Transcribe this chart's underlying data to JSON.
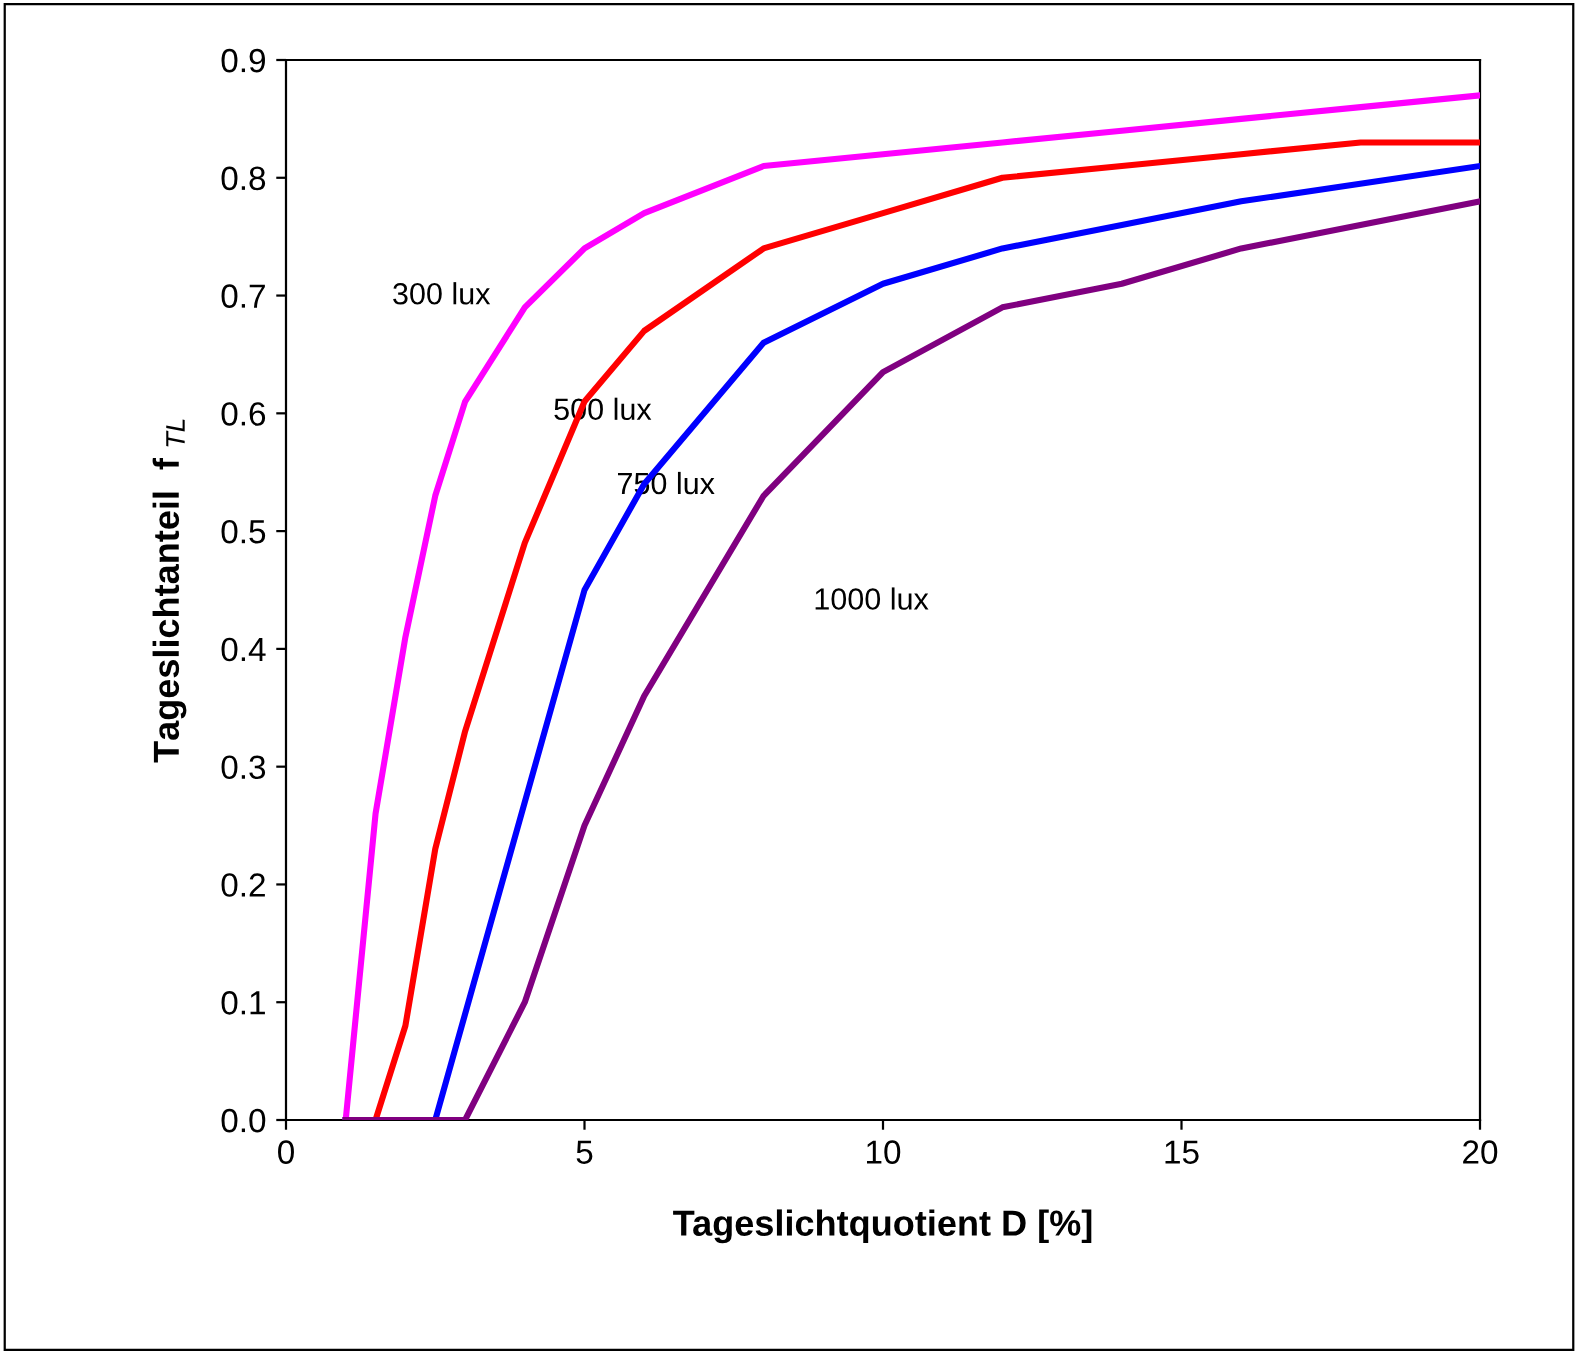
{
  "chart_data": {
    "type": "line",
    "xlabel": "Tageslichtquotient D [%]",
    "ylabel": "Tageslichtanteil  f $_{TL}$",
    "xlim": [
      0,
      20
    ],
    "xticks": [
      0,
      5,
      10,
      15,
      20
    ],
    "ylim": [
      0,
      0.9
    ],
    "yticks": [
      {
        "value": 0,
        "label": "0.0"
      },
      0.1,
      0.2,
      0.3,
      0.4,
      0.5,
      0.6,
      0.7,
      0.8,
      0.9
    ],
    "grid": false,
    "legend": false,
    "marker": "none",
    "line_style": "solid",
    "series": [
      {
        "color": "#ff00ff",
        "x": [
          1,
          1.5,
          2,
          2.5,
          3,
          4,
          5,
          6,
          8,
          10,
          12,
          14,
          16,
          18,
          20
        ],
        "values": [
          0,
          0.26,
          0.41,
          0.53,
          0.61,
          0.69,
          0.74,
          0.77,
          0.81,
          0.82,
          0.83,
          0.84,
          0.85,
          0.86,
          0.87
        ]
      },
      {
        "color": "#ff0000",
        "x": [
          1,
          1.5,
          2,
          2.5,
          3,
          4,
          5,
          6,
          8,
          10,
          12,
          14,
          16,
          18,
          20
        ],
        "values": [
          0,
          0,
          0.08,
          0.23,
          0.33,
          0.49,
          0.61,
          0.67,
          0.74,
          0.77,
          0.8,
          0.81,
          0.82,
          0.83,
          0.83
        ]
      },
      {
        "color": "#0000ff",
        "x": [
          1,
          2.5,
          5,
          6,
          8,
          10,
          12,
          14,
          16,
          20
        ],
        "values": [
          0,
          0,
          0.45,
          0.54,
          0.66,
          0.71,
          0.74,
          0.76,
          0.78,
          0.81
        ]
      },
      {
        "color": "#800080",
        "x": [
          1,
          3,
          4,
          5,
          6,
          8,
          10,
          12,
          14,
          16,
          20
        ],
        "values": [
          0,
          0,
          0.1,
          0.25,
          0.36,
          0.53,
          0.635,
          0.69,
          0.71,
          0.74,
          0.78
        ]
      }
    ],
    "annotations": [
      "300 lux",
      "500 lux",
      "750 lux",
      "1000 lux"
    ]
  }
}
